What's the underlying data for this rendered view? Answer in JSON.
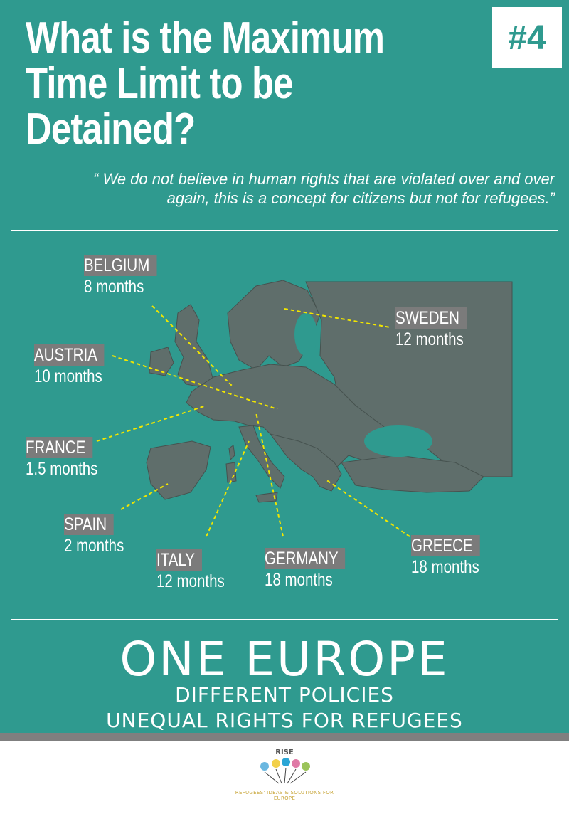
{
  "header": {
    "title": "What is the Maximum Time Limit to be Detained?",
    "badge": "#4"
  },
  "quote": "“ We do not believe in human rights that are violated over and over again, this is a concept for citizens but not for refugees.”",
  "countries": [
    {
      "country": "BELGIUM",
      "duration": "8 months"
    },
    {
      "country": "SWEDEN",
      "duration": "12 months"
    },
    {
      "country": "AUSTRIA",
      "duration": "10 months"
    },
    {
      "country": "FRANCE",
      "duration": "1.5 months"
    },
    {
      "country": "SPAIN",
      "duration": "2 months"
    },
    {
      "country": "ITALY",
      "duration": "12 months"
    },
    {
      "country": "GERMANY",
      "duration": "18 months"
    },
    {
      "country": "GREECE",
      "duration": "18 months"
    }
  ],
  "footer": {
    "headline": "ONE EUROPE",
    "line1": "DIFFERENT POLICIES",
    "line2": "UNEQUAL RIGHTS FOR REFUGEES"
  },
  "logo": {
    "name": "RISE",
    "tagline": "REFUGEES' IDEAS & SOLUTIONS FOR EUROPE"
  },
  "colors": {
    "background": "#2f9a8f",
    "map_land": "#5f6e6b",
    "label_box": "#7b7b7b",
    "connector": "#f2e600"
  }
}
